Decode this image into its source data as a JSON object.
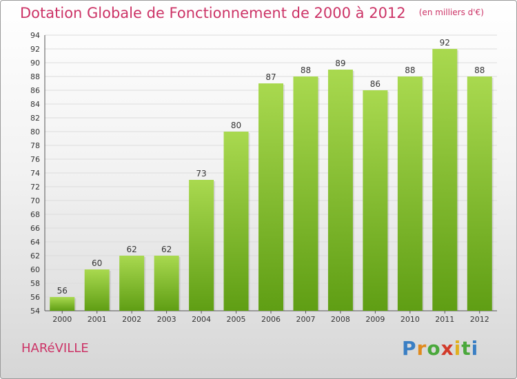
{
  "title": "Dotation Globale de Fonctionnement de 2000 à 2012",
  "unit_note": "(en milliers d'€)",
  "place": "HARéVILLE",
  "brand": {
    "letters": [
      "P",
      "r",
      "o",
      "x",
      "i",
      "t",
      "i"
    ],
    "colors": [
      "#3a7fc4",
      "#e08a1e",
      "#4aa83c",
      "#d23a2a",
      "#e0b020",
      "#4aa83c",
      "#3a7fc4"
    ]
  },
  "colors": {
    "bar_top": "#a9d94f",
    "bar_bottom": "#5f9e14",
    "title": "#cc3366"
  },
  "chart_data": {
    "type": "bar",
    "categories": [
      "2000",
      "2001",
      "2002",
      "2003",
      "2004",
      "2005",
      "2006",
      "2007",
      "2008",
      "2009",
      "2010",
      "2011",
      "2012"
    ],
    "values": [
      56,
      60,
      62,
      62,
      73,
      80,
      87,
      88,
      89,
      86,
      88,
      92,
      88
    ],
    "title": "Dotation Globale de Fonctionnement de 2000 à 2012",
    "xlabel": "",
    "ylabel": "",
    "ylim": [
      54,
      94
    ],
    "yticks": [
      54,
      56,
      58,
      60,
      62,
      64,
      66,
      68,
      70,
      72,
      74,
      76,
      78,
      80,
      82,
      84,
      86,
      88,
      90,
      92,
      94
    ],
    "grid": true,
    "legend": "none"
  }
}
